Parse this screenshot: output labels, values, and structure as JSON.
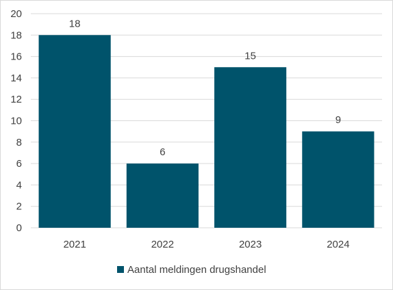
{
  "chart_data": {
    "type": "bar",
    "categories": [
      "2021",
      "2022",
      "2023",
      "2024"
    ],
    "series": [
      {
        "name": "Aantal meldingen drugshandel",
        "values": [
          18,
          6,
          15,
          9
        ],
        "color": "#00536b"
      }
    ],
    "ylim": [
      0,
      20
    ],
    "yticks": [
      "0",
      "2",
      "4",
      "6",
      "8",
      "10",
      "12",
      "14",
      "16",
      "18",
      "20"
    ],
    "grid": true,
    "legend_position": "bottom",
    "data_labels": [
      "18",
      "6",
      "15",
      "9"
    ],
    "gridline_color": "#d9d9d9"
  }
}
